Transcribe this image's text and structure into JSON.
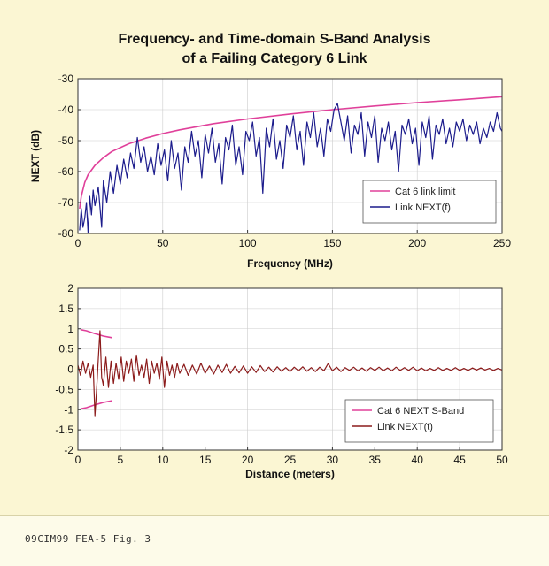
{
  "title": {
    "line1": "Frequency- and Time-domain S-Band Analysis",
    "line2": "of a Failing Category 6 Link"
  },
  "caption": "09CIM99 FEA-5 Fig. 3",
  "colors": {
    "limit": "#e0409a",
    "next_f": "#1c1c8c",
    "sband": "#e0409a",
    "next_t": "#8c1c1c",
    "plot_bg": "#ffffff",
    "grid": "#cccccc"
  },
  "chart_data": [
    {
      "type": "line",
      "title": "Frequency- and Time-domain S-Band Analysis of a Failing Category 6 Link",
      "xlabel": "Frequency (MHz)",
      "ylabel": "NEXT (dB)",
      "xlim": [
        0,
        250
      ],
      "ylim": [
        -80,
        -30
      ],
      "xticks": [
        0,
        50,
        100,
        150,
        200,
        250
      ],
      "yticks": [
        -80,
        -70,
        -60,
        -50,
        -40,
        -30
      ],
      "grid": true,
      "legend": "bottom-right",
      "series": [
        {
          "name": "Cat 6 link limit",
          "x": [
            1,
            2,
            4,
            6,
            10,
            15,
            20,
            30,
            40,
            50,
            60,
            80,
            100,
            125,
            150,
            175,
            200,
            225,
            250
          ],
          "y": [
            -72,
            -68,
            -63.5,
            -61,
            -58,
            -55.5,
            -53.5,
            -51,
            -49.2,
            -47.7,
            -46.5,
            -44.5,
            -43,
            -41.4,
            -40,
            -38.8,
            -37.7,
            -36.8,
            -35.8
          ]
        },
        {
          "name": "Link NEXT(f)",
          "x": [
            1,
            2,
            3,
            4,
            5,
            6,
            7,
            8,
            9,
            10,
            12,
            14,
            15,
            17,
            19,
            21,
            23,
            25,
            27,
            29,
            31,
            33,
            35,
            37,
            39,
            41,
            43,
            45,
            47,
            49,
            51,
            53,
            55,
            57,
            59,
            61,
            63,
            65,
            67,
            69,
            71,
            73,
            75,
            77,
            79,
            81,
            83,
            85,
            87,
            89,
            91,
            93,
            95,
            97,
            99,
            101,
            103,
            105,
            107,
            109,
            111,
            113,
            115,
            117,
            119,
            121,
            123,
            125,
            127,
            129,
            131,
            133,
            135,
            137,
            139,
            141,
            143,
            145,
            147,
            149,
            151,
            153,
            155,
            157,
            159,
            161,
            163,
            165,
            167,
            169,
            171,
            173,
            175,
            177,
            179,
            181,
            183,
            185,
            187,
            189,
            191,
            193,
            195,
            197,
            199,
            201,
            203,
            205,
            207,
            209,
            211,
            213,
            215,
            217,
            219,
            221,
            223,
            225,
            227,
            229,
            231,
            233,
            235,
            237,
            239,
            241,
            243,
            245,
            247,
            249,
            250
          ],
          "y": [
            -79,
            -72,
            -78,
            -75,
            -70,
            -80,
            -68,
            -74,
            -66,
            -71,
            -65,
            -78,
            -63,
            -70,
            -60,
            -67,
            -58,
            -64,
            -56,
            -62,
            -54,
            -59,
            -49,
            -57,
            -52,
            -60,
            -55,
            -61,
            -51,
            -58,
            -53,
            -63,
            -50,
            -59,
            -54,
            -66,
            -52,
            -57,
            -47,
            -55,
            -50,
            -62,
            -48,
            -54,
            -46,
            -57,
            -51,
            -64,
            -49,
            -53,
            -45,
            -58,
            -52,
            -61,
            -47,
            -50,
            -44,
            -55,
            -49,
            -67,
            -46,
            -52,
            -43,
            -56,
            -50,
            -59,
            -45,
            -49,
            -42,
            -53,
            -47,
            -58,
            -44,
            -49,
            -41,
            -52,
            -46,
            -55,
            -43,
            -47,
            -40,
            -38,
            -44,
            -50,
            -42,
            -54,
            -45,
            -48,
            -41,
            -55,
            -44,
            -49,
            -42,
            -57,
            -46,
            -50,
            -44,
            -53,
            -47,
            -60,
            -45,
            -48,
            -43,
            -51,
            -46,
            -58,
            -44,
            -49,
            -42,
            -56,
            -45,
            -48,
            -43,
            -51,
            -46,
            -52,
            -44,
            -47,
            -43,
            -50,
            -45,
            -48,
            -44,
            -51,
            -46,
            -49,
            -44,
            -47,
            -41,
            -46,
            -47
          ]
        }
      ]
    },
    {
      "type": "line",
      "xlabel": "Distance (meters)",
      "ylabel": "",
      "xlim": [
        0,
        50
      ],
      "ylim": [
        -2,
        2
      ],
      "xticks": [
        0,
        5,
        10,
        15,
        20,
        25,
        30,
        35,
        40,
        45,
        50
      ],
      "yticks": [
        -2,
        -1.5,
        -1,
        -0.5,
        0,
        0.5,
        1,
        1.5,
        2
      ],
      "grid": true,
      "legend": "bottom-right",
      "series": [
        {
          "name": "Cat 6 NEXT S-Band",
          "segments": [
            {
              "x": [
                0.3,
                1,
                2,
                3,
                4
              ],
              "y": [
                0.98,
                0.95,
                0.88,
                0.82,
                0.78
              ]
            },
            {
              "x": [
                0.3,
                1,
                2,
                3,
                4
              ],
              "y": [
                -0.98,
                -0.95,
                -0.88,
                -0.82,
                -0.78
              ]
            }
          ]
        },
        {
          "name": "Link NEXT(t)",
          "x": [
            0,
            0.3,
            0.6,
            0.9,
            1.2,
            1.5,
            1.8,
            2.0,
            2.2,
            2.4,
            2.6,
            2.8,
            3.0,
            3.3,
            3.6,
            3.9,
            4.2,
            4.5,
            4.8,
            5.1,
            5.4,
            5.7,
            6.0,
            6.3,
            6.6,
            6.9,
            7.2,
            7.5,
            7.8,
            8.1,
            8.4,
            8.7,
            9.0,
            9.3,
            9.6,
            9.9,
            10.2,
            10.5,
            10.8,
            11.1,
            11.4,
            11.7,
            12.0,
            12.5,
            13.0,
            13.5,
            14.0,
            14.5,
            15.0,
            15.5,
            16.0,
            16.5,
            17.0,
            17.5,
            18.0,
            18.5,
            19.0,
            19.5,
            20.0,
            20.5,
            21.0,
            21.5,
            22.0,
            22.5,
            23.0,
            23.5,
            24.0,
            24.5,
            25.0,
            25.5,
            26.0,
            26.5,
            27.0,
            27.5,
            28.0,
            28.5,
            29.0,
            29.5,
            30.0,
            30.5,
            31.0,
            31.5,
            32.0,
            32.5,
            33.0,
            33.5,
            34.0,
            34.5,
            35.0,
            35.5,
            36.0,
            36.5,
            37.0,
            37.5,
            38.0,
            38.5,
            39.0,
            39.5,
            40.0,
            40.5,
            41.0,
            41.5,
            42.0,
            42.5,
            43.0,
            43.5,
            44.0,
            44.5,
            45.0,
            45.5,
            46.0,
            46.5,
            47.0,
            47.5,
            48.0,
            48.5,
            49.0,
            49.5,
            50.0
          ],
          "y": [
            0.1,
            -0.15,
            0.2,
            -0.1,
            0.15,
            -0.2,
            0.1,
            -1.15,
            -0.5,
            0.25,
            0.95,
            -0.2,
            -0.4,
            0.3,
            -0.45,
            0.2,
            -0.35,
            0.15,
            -0.25,
            0.3,
            -0.3,
            0.2,
            -0.1,
            0.25,
            -0.3,
            0.35,
            -0.15,
            0.1,
            -0.2,
            0.25,
            -0.35,
            0.2,
            -0.1,
            0.15,
            -0.25,
            0.3,
            -0.45,
            0.2,
            -0.15,
            0.1,
            -0.2,
            0.15,
            -0.1,
            0.12,
            -0.15,
            0.1,
            -0.12,
            0.15,
            -0.1,
            0.08,
            -0.12,
            0.1,
            -0.08,
            0.12,
            -0.1,
            0.07,
            -0.09,
            0.08,
            -0.1,
            0.06,
            -0.08,
            0.09,
            -0.06,
            0.05,
            -0.07,
            0.06,
            -0.05,
            0.04,
            -0.06,
            0.05,
            -0.04,
            0.06,
            -0.05,
            0.04,
            -0.06,
            0.05,
            -0.04,
            0.14,
            -0.04,
            0.05,
            -0.06,
            0.04,
            -0.03,
            0.05,
            -0.04,
            0.03,
            -0.05,
            0.04,
            -0.03,
            0.05,
            -0.04,
            0.03,
            -0.04,
            0.05,
            -0.03,
            0.04,
            -0.03,
            0.05,
            -0.04,
            0.03,
            -0.04,
            0.02,
            -0.03,
            0.04,
            -0.03,
            0.02,
            -0.03,
            0.04,
            -0.03,
            0.02,
            -0.03,
            0.03,
            -0.02,
            0.03,
            -0.02,
            0.02,
            -0.03,
            0.02,
            -0.02
          ]
        }
      ]
    }
  ]
}
